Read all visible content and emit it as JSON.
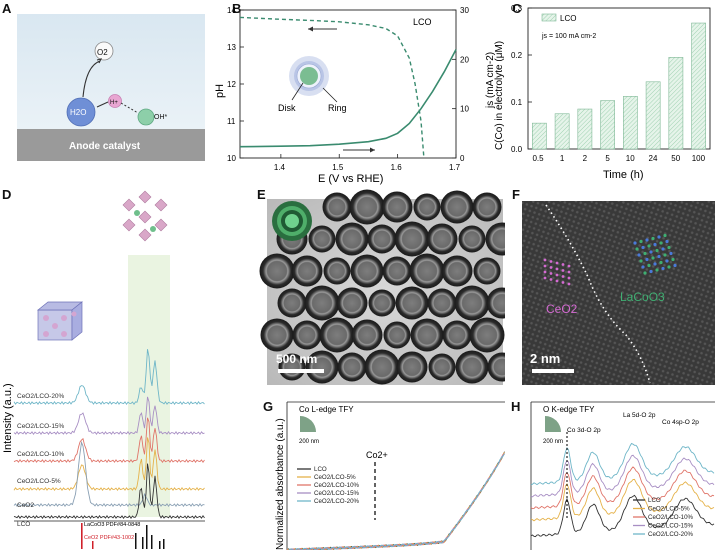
{
  "panel_labels": [
    "A",
    "B",
    "C",
    "D",
    "E",
    "F",
    "G",
    "H"
  ],
  "panelA": {
    "o2": "O2",
    "h2o": "H2O",
    "hplus": "H+",
    "oh": "OH*",
    "catalyst": "Anode catalyst"
  },
  "panelB": {
    "sample": "LCO",
    "disk": "Disk",
    "ring": "Ring",
    "xlabel": "E (V vs RHE)",
    "ylabel_left": "pH",
    "ylabel_right": "js (mA cm-2)"
  },
  "panelD": {
    "ylabel": "Intensity (a.u.)",
    "traces": [
      "CeO2/LCO-20%",
      "CeO2/LCO-15%",
      "CeO2/LCO-10%",
      "CeO2/LCO-5%",
      "CeO2",
      "LCO"
    ],
    "ref_laco": "LaCoO3 PDF#84-0848",
    "ref_ceo2": "CeO2 PDF#43-1002",
    "colors": [
      "#6fb6c8",
      "#a88fc4",
      "#e0756a",
      "#e5b24a",
      "#8aa0b4",
      "#333333"
    ]
  },
  "panelE": {
    "scale": "500 nm"
  },
  "panelF": {
    "scale": "2 nm",
    "ceo2": "CeO2",
    "laco": "LaCoO3"
  },
  "panelG": {
    "title": "Co L-edge TFY",
    "ylabel": "Normalized absorbance (a.u.)",
    "spot": "200 nm",
    "marker": "Co2+",
    "legend": [
      "LCO",
      "CeO2/LCO-5%",
      "CeO2/LCO-10%",
      "CeO2/LCO-15%",
      "CeO2/LCO-20%"
    ],
    "colors": [
      "#333333",
      "#e5b24a",
      "#e0756a",
      "#a88fc4",
      "#6fb6c8"
    ]
  },
  "panelH": {
    "title": "O K-edge TFY",
    "spot": "200 nm",
    "peak1": "Co 3d-O 2p",
    "peak2": "La 5d-O 2p",
    "peak3": "Co 4sp-O 2p",
    "legend": [
      "LCO",
      "CeO2/LCO-5%",
      "CeO2/LCO-10%",
      "CeO2/LCO-15%",
      "CeO2/LCO-20%"
    ],
    "colors": [
      "#333333",
      "#e5b24a",
      "#e0756a",
      "#a88fc4",
      "#6fb6c8"
    ]
  },
  "chart_data": [
    {
      "type": "line",
      "panel": "B",
      "xlabel": "E (V vs RHE)",
      "ylabel": "pH",
      "y2label": "js (mA cm-2)",
      "xlim": [
        1.33,
        1.7
      ],
      "ylim": [
        10,
        14
      ],
      "y2lim": [
        0,
        30
      ],
      "xticks": [
        1.4,
        1.5,
        1.6,
        1.7
      ],
      "yticks": [
        10,
        11,
        12,
        13,
        14
      ],
      "y2ticks": [
        0,
        10,
        20,
        30
      ],
      "series": [
        {
          "axis": "left",
          "style": "dashed",
          "x": [
            1.33,
            1.4,
            1.45,
            1.5,
            1.55,
            1.58,
            1.6,
            1.62,
            1.63,
            1.64,
            1.645
          ],
          "y": [
            13.8,
            13.75,
            13.72,
            13.68,
            13.6,
            13.5,
            13.3,
            12.7,
            12.0,
            11.0,
            10.0
          ]
        },
        {
          "axis": "right",
          "style": "solid",
          "x": [
            1.33,
            1.4,
            1.45,
            1.5,
            1.55,
            1.58,
            1.6,
            1.62,
            1.64,
            1.66,
            1.68,
            1.7
          ],
          "y": [
            2.3,
            2.4,
            2.5,
            2.8,
            3.3,
            4.0,
            5.0,
            7.0,
            10.0,
            13.5,
            17.5,
            22.0
          ]
        }
      ]
    },
    {
      "type": "bar",
      "panel": "C",
      "title": "LCO",
      "annotation": "js = 100 mA cm-2",
      "xlabel": "Time (h)",
      "ylabel": "C(Co) in electrolyte (μM)",
      "categories": [
        "0.5",
        "1",
        "2",
        "5",
        "10",
        "24",
        "50",
        "100"
      ],
      "values": [
        0.055,
        0.075,
        0.085,
        0.103,
        0.112,
        0.143,
        0.195,
        0.268
      ],
      "ylim": [
        0,
        0.3
      ],
      "yticks": [
        0.0,
        0.1,
        0.2,
        0.3
      ]
    }
  ]
}
